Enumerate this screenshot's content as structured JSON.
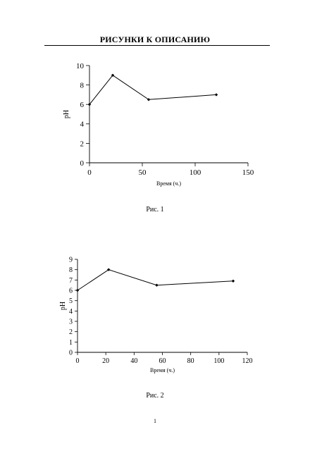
{
  "page": {
    "header": "РИСУНКИ К ОПИСАНИЮ",
    "page_number": "1"
  },
  "chart_data": [
    {
      "type": "line",
      "caption": "Рис. 1",
      "xlabel": "Время (ч.)",
      "ylabel": "pH",
      "xlim": [
        0,
        150
      ],
      "ylim": [
        0,
        10
      ],
      "xticks": [
        "0",
        "50",
        "100",
        "150"
      ],
      "yticks": [
        "0",
        "2",
        "4",
        "6",
        "8",
        "10"
      ],
      "grid": false,
      "legend": "none",
      "series": [
        {
          "x": [
            0,
            22,
            56,
            120
          ],
          "values": [
            6.0,
            9.0,
            6.5,
            7.0
          ]
        }
      ]
    },
    {
      "type": "line",
      "caption": "Рис. 2",
      "xlabel": "Время (ч.)",
      "ylabel": "pH",
      "xlim": [
        0,
        120
      ],
      "ylim": [
        0,
        9
      ],
      "xticks": [
        "0",
        "20",
        "40",
        "60",
        "80",
        "100",
        "120"
      ],
      "yticks": [
        "0",
        "1",
        "2",
        "3",
        "4",
        "5",
        "6",
        "7",
        "8",
        "9"
      ],
      "grid": false,
      "legend": "none",
      "series": [
        {
          "x": [
            0,
            22,
            56,
            110
          ],
          "values": [
            6.0,
            8.0,
            6.5,
            6.9
          ]
        }
      ]
    }
  ]
}
